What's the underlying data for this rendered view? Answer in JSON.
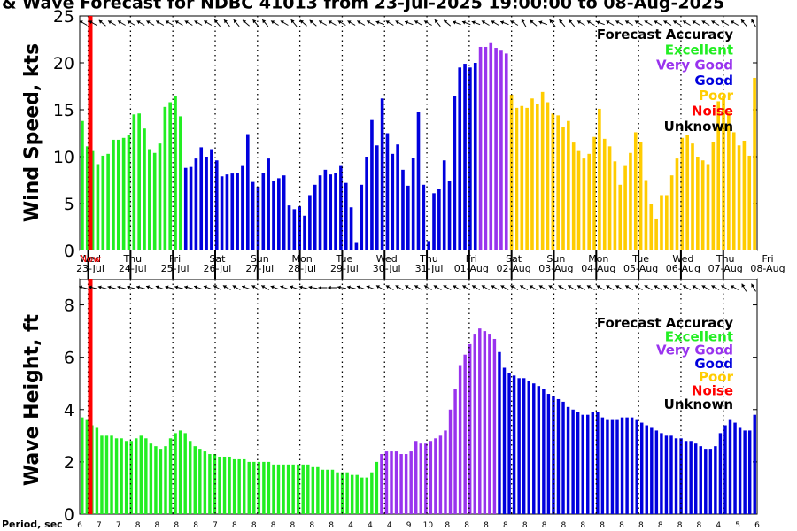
{
  "title": "& Wave Forecast for NDBC 41013 from 23-Jul-2025 19:00:00 to 08-Aug-2025",
  "now_label": "Now",
  "period_label": "Period, sec",
  "colors": {
    "Excellent": "#22ee22",
    "Very Good": "#9933ee",
    "Good": "#0000dd",
    "Poor": "#ffcc00",
    "Noise": "#ff0000",
    "Unknown": "#000000"
  },
  "chart_data": [
    {
      "type": "bar",
      "ylabel": "Wind Speed, kts",
      "ylim": [
        0,
        25
      ],
      "yticks": [
        0,
        5,
        10,
        15,
        20,
        25
      ],
      "legend_title": "Forecast Accuracy",
      "legend": [
        "Excellent",
        "Very Good",
        "Good",
        "Poor",
        "Noise",
        "Unknown"
      ],
      "legend_position": "top-right",
      "segments": [
        {
          "accuracy": "Excellent",
          "values": [
            13.8,
            11.1,
            10.6,
            9.2,
            10.1,
            10.3,
            11.8,
            11.8,
            12.0,
            12.3,
            14.5,
            14.6,
            13.0,
            10.8,
            10.4,
            11.4,
            15.3,
            15.8,
            16.5,
            14.3
          ]
        },
        {
          "accuracy": "Good",
          "values": [
            8.8,
            8.9,
            9.8,
            11.0,
            10.0,
            10.8,
            9.6,
            7.9,
            8.1,
            8.2,
            8.3,
            9.0,
            12.4,
            7.3,
            6.8,
            8.3,
            9.8,
            7.4,
            7.7,
            8.0,
            4.8,
            4.4,
            4.7,
            3.7,
            5.9,
            7.0,
            8.0,
            8.6,
            8.1,
            8.3,
            9.0,
            7.2,
            4.6,
            0.8,
            7.0,
            10.0,
            13.9,
            11.2,
            16.2,
            12.5,
            10.3,
            11.3,
            8.6,
            6.9,
            9.9,
            14.8,
            7.0,
            1.0,
            6.1,
            6.6,
            9.6,
            7.4,
            16.5,
            19.5,
            19.9,
            19.5,
            20.0
          ]
        },
        {
          "accuracy": "Very Good",
          "values": [
            21.7,
            21.7,
            22.1,
            21.6,
            21.3,
            21.0
          ]
        },
        {
          "accuracy": "Poor",
          "values": [
            16.6,
            15.2,
            15.4,
            15.2,
            16.2,
            15.6,
            16.9,
            15.8,
            14.6,
            14.4,
            13.2,
            13.8,
            11.5,
            10.6,
            9.8,
            10.3,
            12.1,
            15.1,
            11.9,
            11.1,
            9.5,
            7.0,
            9.0,
            10.4,
            12.6,
            11.6,
            7.5,
            5.0,
            3.4,
            5.9,
            5.9,
            8.0,
            9.8,
            12.0,
            12.3,
            11.4,
            10.0,
            9.6,
            9.2,
            11.6,
            15.9,
            16.5,
            14.7,
            12.6,
            11.2,
            11.7,
            10.1,
            18.4
          ]
        }
      ]
    },
    {
      "type": "bar",
      "ylabel": "Wave Height, ft",
      "ylim": [
        0,
        9
      ],
      "yticks": [
        0,
        2,
        4,
        6,
        8
      ],
      "legend_title": "Forecast Accuracy",
      "legend": [
        "Excellent",
        "Very Good",
        "Good",
        "Poor",
        "Noise",
        "Unknown"
      ],
      "legend_position": "top-right",
      "segments": [
        {
          "accuracy": "Excellent",
          "values": [
            3.7,
            3.6,
            3.4,
            3.3,
            3.0,
            3.0,
            3.0,
            2.9,
            2.9,
            2.8,
            2.8,
            2.9,
            3.0,
            2.9,
            2.7,
            2.6,
            2.5,
            2.6,
            2.9,
            3.1,
            3.2,
            3.1,
            2.8,
            2.6,
            2.5,
            2.4,
            2.3,
            2.3,
            2.2,
            2.2,
            2.2,
            2.1,
            2.1,
            2.1,
            2.0,
            2.0,
            2.0,
            2.0,
            2.0,
            1.9,
            1.9,
            1.9,
            1.9,
            1.9,
            1.9,
            1.9,
            1.9,
            1.8,
            1.8,
            1.7,
            1.7,
            1.7,
            1.6,
            1.6,
            1.6,
            1.5,
            1.5,
            1.4,
            1.4,
            1.6,
            2.0
          ]
        },
        {
          "accuracy": "Very Good",
          "values": [
            2.3,
            2.4,
            2.4,
            2.4,
            2.3,
            2.3,
            2.4,
            2.8,
            2.7,
            2.7,
            2.8,
            2.9,
            3.0,
            3.2,
            4.0,
            4.8,
            5.7,
            6.1,
            6.5,
            6.9,
            7.1,
            7.0,
            6.9,
            6.7
          ]
        },
        {
          "accuracy": "Good",
          "values": [
            6.2,
            5.6,
            5.4,
            5.3,
            5.2,
            5.2,
            5.1,
            5.0,
            4.9,
            4.8,
            4.6,
            4.5,
            4.4,
            4.3,
            4.1,
            4.0,
            3.9,
            3.8,
            3.8,
            3.9,
            3.9,
            3.7,
            3.6,
            3.6,
            3.6,
            3.7,
            3.7,
            3.7,
            3.6,
            3.5,
            3.4,
            3.3,
            3.2,
            3.1,
            3.0,
            3.0,
            2.9,
            2.9,
            2.8,
            2.8,
            2.7,
            2.6,
            2.5,
            2.5,
            2.6,
            3.1,
            3.4,
            3.6,
            3.5,
            3.3,
            3.2,
            3.2,
            3.8
          ]
        }
      ]
    }
  ],
  "days": [
    {
      "dow": "Wed",
      "date": "23-Jul"
    },
    {
      "dow": "Thu",
      "date": "24-Jul"
    },
    {
      "dow": "Fri",
      "date": "25-Jul"
    },
    {
      "dow": "Sat",
      "date": "26-Jul"
    },
    {
      "dow": "Sun",
      "date": "27-Jul"
    },
    {
      "dow": "Mon",
      "date": "28-Jul"
    },
    {
      "dow": "Tue",
      "date": "29-Jul"
    },
    {
      "dow": "Wed",
      "date": "30-Jul"
    },
    {
      "dow": "Thu",
      "date": "31-Jul"
    },
    {
      "dow": "Fri",
      "date": "01-Aug"
    },
    {
      "dow": "Sat",
      "date": "02-Aug"
    },
    {
      "dow": "Sun",
      "date": "03-Aug"
    },
    {
      "dow": "Mon",
      "date": "04-Aug"
    },
    {
      "dow": "Tue",
      "date": "05-Aug"
    },
    {
      "dow": "Wed",
      "date": "06-Aug"
    },
    {
      "dow": "Thu",
      "date": "07-Aug"
    },
    {
      "dow": "Fri",
      "date": "08-Aug"
    }
  ],
  "periods": [
    "6",
    "7",
    "7",
    "8",
    "8",
    "8",
    "8",
    "7",
    "8",
    "8",
    "8",
    "8",
    "8",
    "8",
    "4",
    "4",
    "4",
    "9",
    "10",
    "8",
    "8",
    "8",
    "8",
    "8",
    "8",
    "8",
    "8",
    "8",
    "8",
    "8",
    "8",
    "8",
    "8",
    "4",
    "5",
    "6"
  ],
  "wind_arrow_dirs_deg": [
    300,
    300,
    310,
    300,
    300,
    300,
    300,
    300,
    300,
    300,
    300,
    300,
    300,
    300,
    320,
    320,
    320,
    310,
    320,
    320,
    300,
    300,
    320,
    310,
    310,
    300,
    300,
    300,
    300,
    300,
    300,
    290,
    300,
    300,
    290,
    300,
    300,
    320,
    310,
    290,
    290,
    290,
    300,
    300,
    290,
    300,
    330,
    310,
    290,
    320,
    320,
    320,
    300,
    300,
    290,
    300,
    300,
    300,
    300,
    300,
    300,
    300,
    300,
    300,
    300,
    300,
    300,
    300,
    300,
    320,
    330
  ],
  "wave_arrow_dirs_deg": [
    285,
    285,
    285,
    285,
    285,
    285,
    285,
    290,
    290,
    285,
    285,
    285,
    290,
    290,
    300,
    300,
    300,
    290,
    300,
    300,
    290,
    290,
    290,
    285,
    280,
    270,
    270,
    280,
    285,
    290,
    290,
    300,
    300,
    300,
    300,
    300,
    300,
    300,
    300,
    300,
    300,
    300,
    300,
    300,
    300,
    300,
    300,
    300,
    300,
    300,
    300,
    300,
    300,
    300,
    300,
    300,
    300,
    300,
    300,
    300,
    300,
    300,
    300,
    300,
    300,
    300,
    300,
    300,
    300,
    330,
    330
  ]
}
